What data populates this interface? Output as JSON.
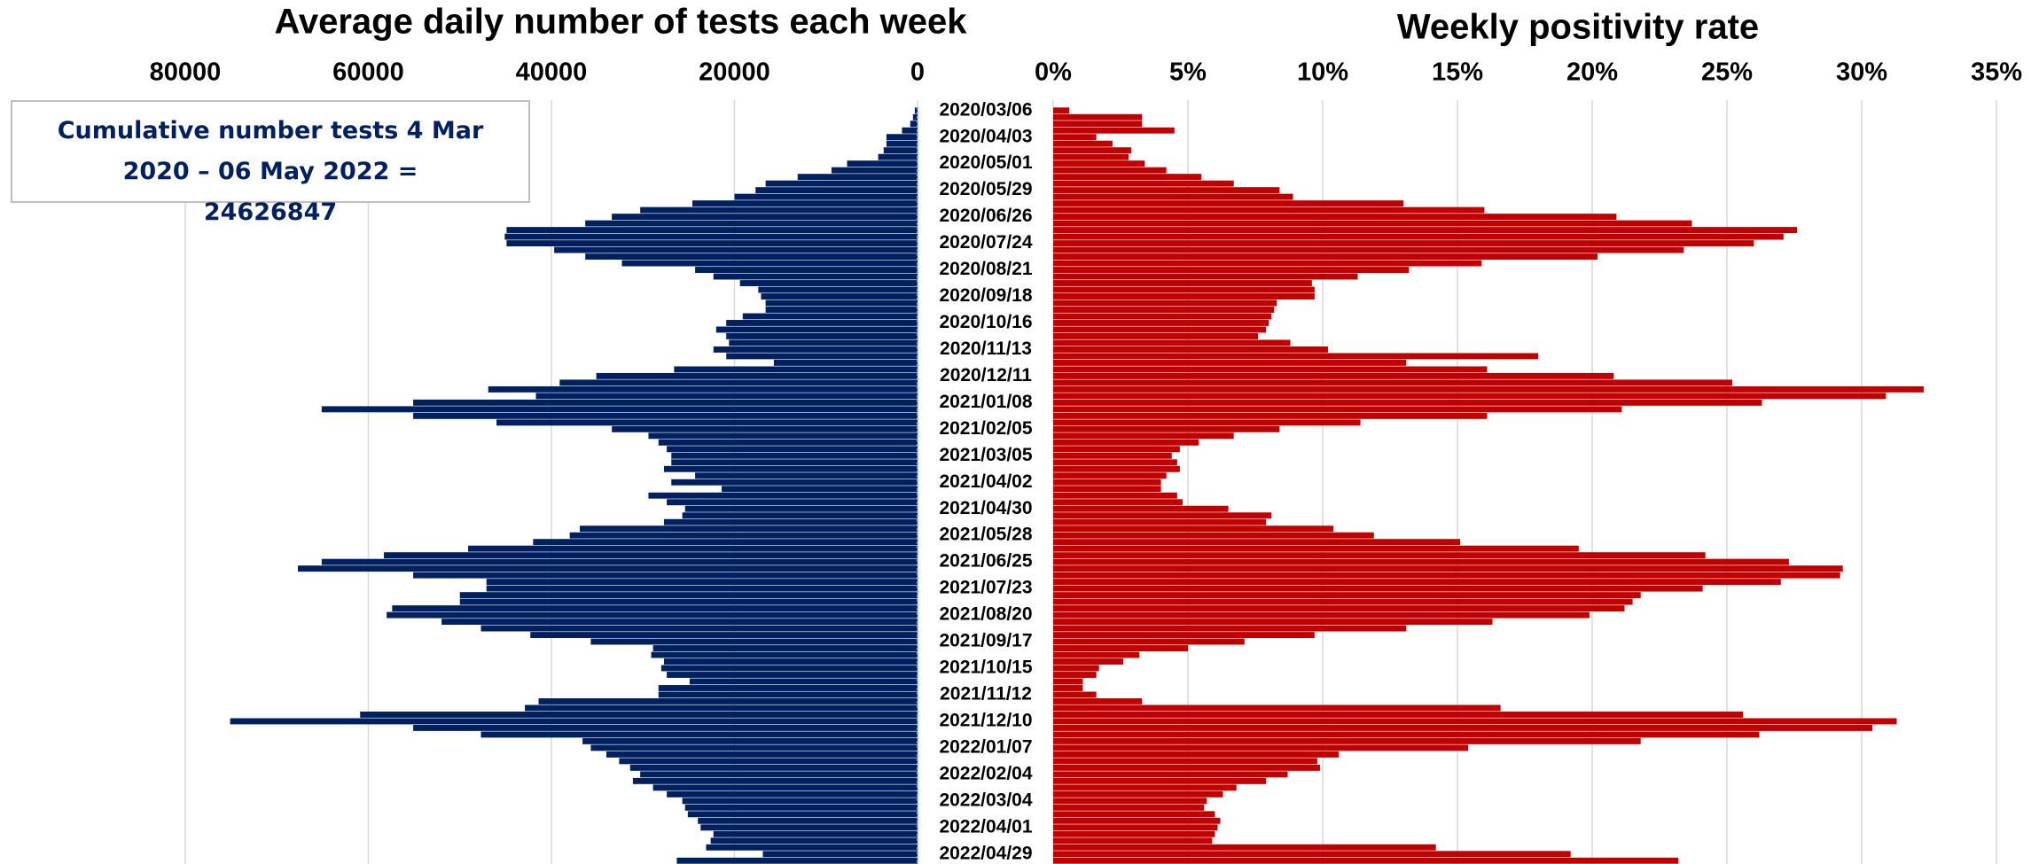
{
  "chart_data": [
    {
      "type": "bar",
      "orientation": "horizontal",
      "direction": "reversed",
      "title": "Average daily number of tests each week",
      "annotation": "Cumulative number tests 4 Mar 2020 – 06 May 2022 = 24626847",
      "categories": [
        "2020/03/06",
        null,
        null,
        null,
        "2020/04/03",
        null,
        null,
        null,
        "2020/05/01",
        null,
        null,
        null,
        "2020/05/29",
        null,
        null,
        null,
        "2020/06/26",
        null,
        null,
        null,
        "2020/07/24",
        null,
        null,
        null,
        "2020/08/21",
        null,
        null,
        null,
        "2020/09/18",
        null,
        null,
        null,
        "2020/10/16",
        null,
        null,
        null,
        "2020/11/13",
        null,
        null,
        null,
        "2020/12/11",
        null,
        null,
        null,
        "2021/01/08",
        null,
        null,
        null,
        "2021/02/05",
        null,
        null,
        null,
        "2021/03/05",
        null,
        null,
        null,
        "2021/04/02",
        null,
        null,
        null,
        "2021/04/30",
        null,
        null,
        null,
        "2021/05/28",
        null,
        null,
        null,
        "2021/06/25",
        null,
        null,
        null,
        "2021/07/23",
        null,
        null,
        null,
        "2021/08/20",
        null,
        null,
        null,
        "2021/09/17",
        null,
        null,
        null,
        "2021/10/15",
        null,
        null,
        null,
        "2021/11/12",
        null,
        null,
        null,
        "2021/12/10",
        null,
        null,
        null,
        "2022/01/07",
        null,
        null,
        null,
        "2022/02/04",
        null,
        null,
        null,
        "2022/03/04",
        null,
        null,
        null,
        "2022/04/01",
        null,
        null,
        null,
        "2022/04/29",
        null
      ],
      "values": [
        300,
        500,
        800,
        1700,
        3400,
        3400,
        3700,
        4300,
        7700,
        9400,
        13100,
        16600,
        17700,
        20000,
        24600,
        30300,
        33400,
        36300,
        44900,
        45100,
        44900,
        39700,
        36300,
        32300,
        24300,
        22300,
        19400,
        17400,
        17100,
        16600,
        16600,
        19100,
        20900,
        22000,
        20900,
        20600,
        22300,
        20900,
        15700,
        26600,
        35100,
        39100,
        46900,
        41700,
        55100,
        65100,
        55100,
        46000,
        33400,
        29400,
        28300,
        27400,
        26900,
        26900,
        27700,
        24300,
        26900,
        21400,
        29400,
        27400,
        25400,
        25700,
        27700,
        36900,
        38000,
        42000,
        49100,
        58300,
        65100,
        67700,
        55100,
        47100,
        47100,
        50000,
        50000,
        57400,
        58000,
        52000,
        47700,
        42300,
        35700,
        28900,
        29100,
        27700,
        28000,
        27400,
        24900,
        28300,
        28300,
        41400,
        42900,
        60900,
        75100,
        55100,
        47700,
        36600,
        35700,
        34000,
        32600,
        31400,
        30300,
        31100,
        28900,
        27400,
        25700,
        25400,
        25100,
        24000,
        23700,
        22300,
        22600,
        23100,
        16900,
        26300
      ],
      "color": "#002060",
      "xlim": [
        0,
        80000
      ],
      "xticks": [
        0,
        20000,
        40000,
        60000,
        80000
      ],
      "grid": true
    },
    {
      "type": "bar",
      "orientation": "horizontal",
      "title": "Weekly positivity rate",
      "values": [
        0.6,
        3.3,
        3.3,
        4.5,
        1.6,
        2.2,
        2.9,
        2.8,
        3.4,
        4.2,
        5.5,
        6.7,
        8.4,
        8.9,
        13.0,
        16.0,
        20.9,
        23.7,
        27.6,
        27.1,
        26.0,
        23.4,
        20.2,
        15.9,
        13.2,
        11.3,
        9.6,
        9.7,
        9.7,
        8.3,
        8.2,
        8.1,
        8.0,
        7.9,
        7.6,
        8.8,
        10.2,
        18.0,
        13.1,
        16.1,
        20.8,
        25.2,
        32.3,
        30.9,
        26.3,
        21.1,
        16.1,
        11.4,
        8.4,
        6.7,
        5.4,
        4.7,
        4.4,
        4.6,
        4.7,
        4.2,
        4.0,
        4.0,
        4.6,
        4.8,
        6.5,
        8.1,
        7.9,
        10.4,
        11.9,
        15.1,
        19.5,
        24.2,
        27.3,
        29.3,
        29.2,
        27.0,
        24.1,
        21.8,
        21.5,
        21.2,
        19.9,
        16.3,
        13.1,
        9.7,
        7.1,
        5.0,
        3.2,
        2.6,
        1.7,
        1.6,
        1.1,
        1.1,
        1.6,
        3.3,
        16.6,
        25.6,
        31.3,
        30.4,
        26.2,
        21.8,
        15.4,
        10.6,
        9.8,
        9.9,
        8.7,
        7.9,
        6.8,
        6.3,
        5.7,
        5.6,
        6.0,
        6.2,
        6.1,
        6.0,
        5.9,
        14.2,
        19.2,
        23.2
      ],
      "color": "#c00000",
      "xlim": [
        0,
        35
      ],
      "xticks": [
        {
          "value": 0,
          "label": "0%"
        },
        {
          "value": 5,
          "label": "5%"
        },
        {
          "value": 10,
          "label": "10%"
        },
        {
          "value": 15,
          "label": "15%"
        },
        {
          "value": 20,
          "label": "20%"
        },
        {
          "value": 25,
          "label": "25%"
        },
        {
          "value": 30,
          "label": "30%"
        },
        {
          "value": 35,
          "label": "35%"
        }
      ],
      "grid": true
    }
  ]
}
